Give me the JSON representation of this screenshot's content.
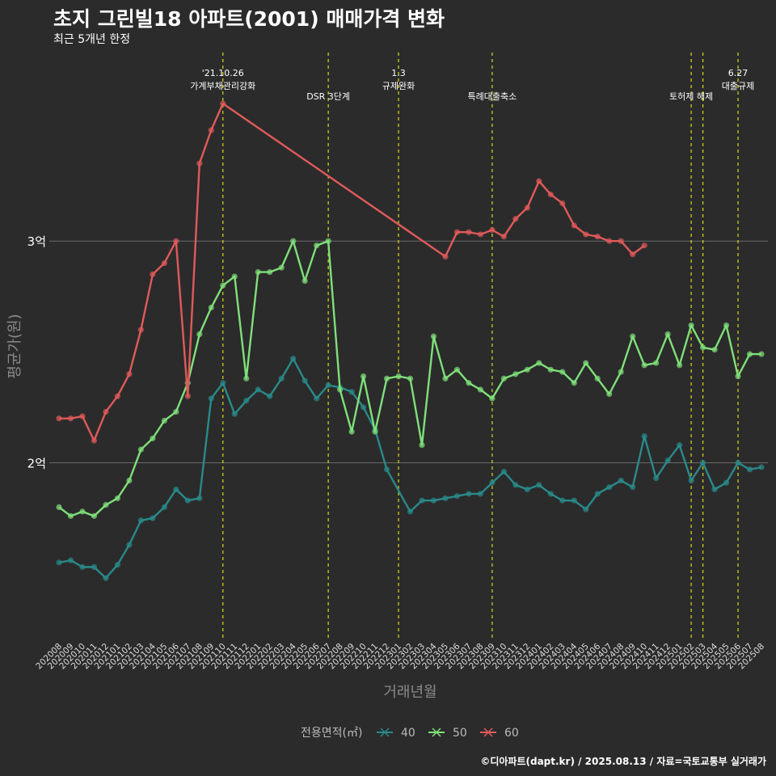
{
  "title": "초지 그린빌18 아파트(2001) 매매가격 변화",
  "subtitle": "최근 5개년 한정",
  "credit": "©디아파트(dapt.kr) / 2025.08.13 / 자료=국토교통부 실거래가",
  "colors": {
    "background": "#2b2b2b",
    "s40": "#2a8a8a",
    "s50": "#7fe07a",
    "s60": "#e05a5a",
    "event_line": "#d8d820",
    "grid": "#6a6a6a"
  },
  "chart_data": {
    "type": "line",
    "xlabel": "거래년월",
    "ylabel": "평균가(원)",
    "y_ticks": [
      {
        "value": 20000,
        "label": "2억"
      },
      {
        "value": 30000,
        "label": "3억"
      }
    ],
    "ylim": [
      12000,
      38500
    ],
    "x_categories": [
      "202008",
      "202009",
      "202010",
      "202011",
      "202012",
      "202101",
      "202102",
      "202103",
      "202104",
      "202105",
      "202106",
      "202107",
      "202108",
      "202109",
      "202110",
      "202111",
      "202112",
      "202201",
      "202202",
      "202203",
      "202204",
      "202205",
      "202206",
      "202207",
      "202208",
      "202209",
      "202210",
      "202211",
      "202212",
      "202301",
      "202302",
      "202303",
      "202304",
      "202305",
      "202306",
      "202307",
      "202308",
      "202309",
      "202310",
      "202311",
      "202312",
      "202401",
      "202402",
      "202403",
      "202404",
      "202405",
      "202406",
      "202407",
      "202408",
      "202409",
      "202410",
      "202411",
      "202412",
      "202501",
      "202502",
      "202503",
      "202504",
      "202505",
      "202506",
      "202507",
      "202508"
    ],
    "legend": {
      "title": "전용면적(㎡)",
      "position": "bottom",
      "items": [
        "40",
        "50",
        "60"
      ]
    },
    "events": [
      {
        "x": "202110",
        "label": "'21.10.26\n가계부채관리강화"
      },
      {
        "x": "202207",
        "label": "DSR 3단계"
      },
      {
        "x": "202301",
        "label": "1.3\n규제완화"
      },
      {
        "x": "202309",
        "label": "특례대출축소"
      },
      {
        "x": "202502",
        "label": "토허제 해제"
      },
      {
        "x": "202503",
        "label": ""
      },
      {
        "x": "202506",
        "label": "6.27\n대출규제"
      }
    ],
    "series": [
      {
        "name": "40",
        "color": "#2a8a8a",
        "points": [
          [
            "202008",
            15500
          ],
          [
            "202009",
            15600
          ],
          [
            "202010",
            15300
          ],
          [
            "202011",
            15300
          ],
          [
            "202012",
            14800
          ],
          [
            "202101",
            15400
          ],
          [
            "202102",
            16300
          ],
          [
            "202103",
            17400
          ],
          [
            "202104",
            17500
          ],
          [
            "202105",
            18000
          ],
          [
            "202106",
            18800
          ],
          [
            "202107",
            18300
          ],
          [
            "202108",
            18400
          ],
          [
            "202109",
            22900
          ],
          [
            "202110",
            23600
          ],
          [
            "202111",
            22200
          ],
          [
            "202112",
            22800
          ],
          [
            "202201",
            23300
          ],
          [
            "202202",
            23000
          ],
          [
            "202203",
            23800
          ],
          [
            "202204",
            24700
          ],
          [
            "202205",
            23700
          ],
          [
            "202206",
            22900
          ],
          [
            "202207",
            23500
          ],
          [
            "202208",
            23400
          ],
          [
            "202209",
            23200
          ],
          [
            "202210",
            22500
          ],
          [
            "202211",
            21500
          ],
          [
            "202212",
            19700
          ],
          [
            "202302",
            17800
          ],
          [
            "202303",
            18300
          ],
          [
            "202304",
            18300
          ],
          [
            "202305",
            18400
          ],
          [
            "202306",
            18500
          ],
          [
            "202307",
            18600
          ],
          [
            "202308",
            18600
          ],
          [
            "202309",
            19100
          ],
          [
            "202310",
            19600
          ],
          [
            "202311",
            19000
          ],
          [
            "202312",
            18800
          ],
          [
            "202401",
            19000
          ],
          [
            "202402",
            18600
          ],
          [
            "202403",
            18300
          ],
          [
            "202404",
            18300
          ],
          [
            "202405",
            17900
          ],
          [
            "202406",
            18600
          ],
          [
            "202407",
            18900
          ],
          [
            "202408",
            19200
          ],
          [
            "202409",
            18900
          ],
          [
            "202410",
            21200
          ],
          [
            "202411",
            19300
          ],
          [
            "202412",
            20100
          ],
          [
            "202501",
            20800
          ],
          [
            "202502",
            19200
          ],
          [
            "202503",
            20000
          ],
          [
            "202504",
            18800
          ],
          [
            "202505",
            19100
          ],
          [
            "202506",
            20000
          ],
          [
            "202507",
            19700
          ],
          [
            "202508",
            19800
          ]
        ]
      },
      {
        "name": "50",
        "color": "#7fe07a",
        "points": [
          [
            "202008",
            18000
          ],
          [
            "202009",
            17600
          ],
          [
            "202010",
            17800
          ],
          [
            "202011",
            17600
          ],
          [
            "202012",
            18100
          ],
          [
            "202101",
            18400
          ],
          [
            "202102",
            19200
          ],
          [
            "202103",
            20600
          ],
          [
            "202104",
            21100
          ],
          [
            "202105",
            21900
          ],
          [
            "202106",
            22300
          ],
          [
            "202107",
            23600
          ],
          [
            "202108",
            25800
          ],
          [
            "202109",
            27000
          ],
          [
            "202110",
            28000
          ],
          [
            "202111",
            28400
          ],
          [
            "202112",
            23800
          ],
          [
            "202201",
            28600
          ],
          [
            "202202",
            28600
          ],
          [
            "202203",
            28800
          ],
          [
            "202204",
            30000
          ],
          [
            "202205",
            28200
          ],
          [
            "202206",
            29800
          ],
          [
            "202207",
            30000
          ],
          [
            "202208",
            23300
          ],
          [
            "202209",
            21400
          ],
          [
            "202210",
            23900
          ],
          [
            "202211",
            21400
          ],
          [
            "202212",
            23800
          ],
          [
            "202301",
            23900
          ],
          [
            "202302",
            23800
          ],
          [
            "202303",
            20800
          ],
          [
            "202304",
            25700
          ],
          [
            "202305",
            23800
          ],
          [
            "202306",
            24200
          ],
          [
            "202307",
            23600
          ],
          [
            "202308",
            23300
          ],
          [
            "202309",
            22900
          ],
          [
            "202310",
            23800
          ],
          [
            "202311",
            24000
          ],
          [
            "202312",
            24200
          ],
          [
            "202401",
            24500
          ],
          [
            "202402",
            24200
          ],
          [
            "202403",
            24100
          ],
          [
            "202404",
            23600
          ],
          [
            "202405",
            24500
          ],
          [
            "202406",
            23800
          ],
          [
            "202407",
            23100
          ],
          [
            "202408",
            24100
          ],
          [
            "202409",
            25700
          ],
          [
            "202410",
            24400
          ],
          [
            "202411",
            24500
          ],
          [
            "202412",
            25800
          ],
          [
            "202501",
            24400
          ],
          [
            "202502",
            26200
          ],
          [
            "202503",
            25200
          ],
          [
            "202504",
            25100
          ],
          [
            "202505",
            26200
          ],
          [
            "202506",
            23900
          ],
          [
            "202507",
            24900
          ],
          [
            "202508",
            24900
          ]
        ]
      },
      {
        "name": "60",
        "color": "#e05a5a",
        "points": [
          [
            "202008",
            22000
          ],
          [
            "202009",
            22000
          ],
          [
            "202010",
            22100
          ],
          [
            "202011",
            21000
          ],
          [
            "202012",
            22300
          ],
          [
            "202101",
            23000
          ],
          [
            "202102",
            24000
          ],
          [
            "202103",
            26000
          ],
          [
            "202104",
            28500
          ],
          [
            "202105",
            29000
          ],
          [
            "202106",
            30000
          ],
          [
            "202107",
            23000
          ],
          [
            "202108",
            33500
          ],
          [
            "202109",
            35000
          ],
          [
            "202110",
            36200
          ],
          [
            "202305",
            29300
          ],
          [
            "202306",
            30400
          ],
          [
            "202307",
            30400
          ],
          [
            "202308",
            30300
          ],
          [
            "202309",
            30500
          ],
          [
            "202310",
            30200
          ],
          [
            "202311",
            31000
          ],
          [
            "202312",
            31500
          ],
          [
            "202401",
            32700
          ],
          [
            "202402",
            32100
          ],
          [
            "202403",
            31700
          ],
          [
            "202404",
            30700
          ],
          [
            "202405",
            30300
          ],
          [
            "202406",
            30200
          ],
          [
            "202407",
            30000
          ],
          [
            "202408",
            30000
          ],
          [
            "202409",
            29400
          ],
          [
            "202410",
            29800
          ]
        ]
      }
    ]
  }
}
